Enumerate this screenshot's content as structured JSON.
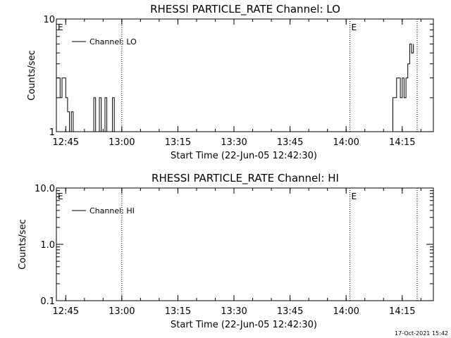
{
  "footer": {
    "timestamp": "17-Oct-2021 15:42"
  },
  "chart_data": [
    {
      "type": "line",
      "title": "RHESSI PARTICLE_RATE Channel: LO",
      "xlabel": "Start Time (22-Jun-05 12:42:30)",
      "ylabel": "Counts/sec",
      "yscale": "log",
      "ylim": [
        1,
        10
      ],
      "xlim": [
        "12:42:30",
        "14:23:20"
      ],
      "x_ticks": [
        "12:45",
        "13:00",
        "13:15",
        "13:30",
        "13:45",
        "14:00",
        "14:15"
      ],
      "y_ticks": [
        "1",
        "10"
      ],
      "legend": {
        "entries": [
          "Channel: LO"
        ],
        "position": "top-left"
      },
      "vertical_markers": [
        "13:00",
        "14:01",
        "14:19"
      ],
      "event_labels": [
        {
          "text": "E",
          "at": "12:42:30"
        },
        {
          "text": "E",
          "at": "14:01"
        }
      ],
      "series": [
        {
          "name": "Channel: LO",
          "x": [
            "12:42:30",
            "12:43",
            "12:43:30",
            "12:44",
            "12:44:30",
            "12:45",
            "12:45:30",
            "12:46",
            "12:46:30",
            "12:47",
            "12:52",
            "12:52:30",
            "12:53",
            "12:53:30",
            "12:54",
            "12:54:30",
            "12:55",
            "12:55:30",
            "12:56",
            "12:56:30",
            "12:57",
            "12:57:30",
            "12:58",
            "12:58:30",
            "14:12",
            "14:12:30",
            "14:13",
            "14:13:30",
            "14:14",
            "14:14:30",
            "14:15",
            "14:15:30",
            "14:16",
            "14:16:30",
            "14:17",
            "14:17:30",
            "14:18"
          ],
          "y": [
            3,
            3,
            2,
            3,
            3,
            2,
            1.5,
            1,
            1.5,
            1,
            1,
            2,
            1,
            1,
            2,
            1,
            1,
            2,
            1,
            1,
            1,
            2,
            1,
            1,
            1,
            2,
            2,
            3,
            3,
            2,
            3,
            2,
            3,
            4,
            6,
            5,
            6
          ]
        }
      ]
    },
    {
      "type": "line",
      "title": "RHESSI PARTICLE_RATE Channel: HI",
      "xlabel": "Start Time (22-Jun-05 12:42:30)",
      "ylabel": "Counts/sec",
      "yscale": "log",
      "ylim": [
        0.1,
        10
      ],
      "xlim": [
        "12:42:30",
        "14:23:20"
      ],
      "x_ticks": [
        "12:45",
        "13:00",
        "13:15",
        "13:30",
        "13:45",
        "14:00",
        "14:15"
      ],
      "y_ticks": [
        "0.1",
        "1.0",
        "10.0"
      ],
      "legend": {
        "entries": [
          "Channel: HI"
        ],
        "position": "top-left"
      },
      "vertical_markers": [
        "13:00",
        "14:01",
        "14:19"
      ],
      "event_labels": [
        {
          "text": "E",
          "at": "12:42:30"
        },
        {
          "text": "E",
          "at": "14:01"
        }
      ],
      "series": [
        {
          "name": "Channel: HI",
          "x": [],
          "y": []
        }
      ]
    }
  ]
}
